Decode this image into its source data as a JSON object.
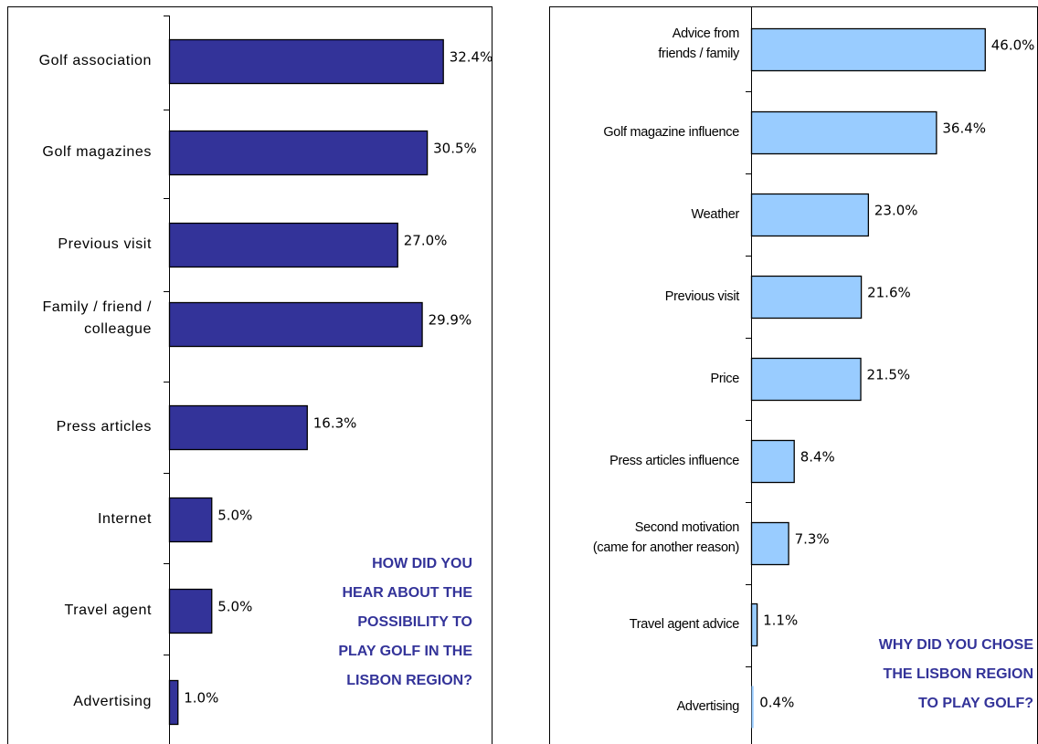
{
  "colors": {
    "left_bar_fill": "#333399",
    "right_bar_fill": "#99ccff",
    "annotation_text": "#333399",
    "axis": "#000000",
    "background": "#ffffff"
  },
  "chart_data": [
    {
      "type": "bar",
      "orientation": "horizontal",
      "title": "",
      "xlabel": "",
      "ylabel": "",
      "xlim": [
        0,
        50
      ],
      "grid": false,
      "legend": "none",
      "categories": [
        "Golf association",
        "Golf magazines",
        "Previous visit",
        [
          "Family / friend /",
          "colleague"
        ],
        "Press articles",
        "Internet",
        "Travel agent",
        "Advertising"
      ],
      "values": [
        32.4,
        30.5,
        27.0,
        29.9,
        16.3,
        5.0,
        5.0,
        1.0
      ],
      "data_labels": [
        "32.4%",
        "30.5%",
        "27.0%",
        "29.9%",
        "16.3%",
        "5.0%",
        "5.0%",
        "1.0%"
      ],
      "annotation": [
        "HOW DID YOU",
        "HEAR ABOUT THE",
        "POSSIBILITY TO",
        "PLAY GOLF IN THE",
        "LISBON REGION?"
      ]
    },
    {
      "type": "bar",
      "orientation": "horizontal",
      "title": "",
      "xlabel": "",
      "ylabel": "",
      "xlim": [
        0,
        50
      ],
      "grid": false,
      "legend": "none",
      "categories": [
        [
          "Advice from",
          "friends / family"
        ],
        "Golf magazine influence",
        "Weather",
        "Previous visit",
        "Price",
        "Press articles influence",
        [
          "Second motivation",
          "(came for another reason)"
        ],
        "Travel agent advice",
        "Advertising"
      ],
      "values": [
        46.0,
        36.4,
        23.0,
        21.6,
        21.5,
        8.4,
        7.3,
        1.1,
        0.4
      ],
      "data_labels": [
        "46.0%",
        "36.4%",
        "23.0%",
        "21.6%",
        "21.5%",
        "8.4%",
        "7.3%",
        "1.1%",
        "0.4%"
      ],
      "annotation": [
        "WHY DID YOU CHOSE",
        "THE LISBON REGION",
        "TO PLAY GOLF?"
      ]
    }
  ]
}
